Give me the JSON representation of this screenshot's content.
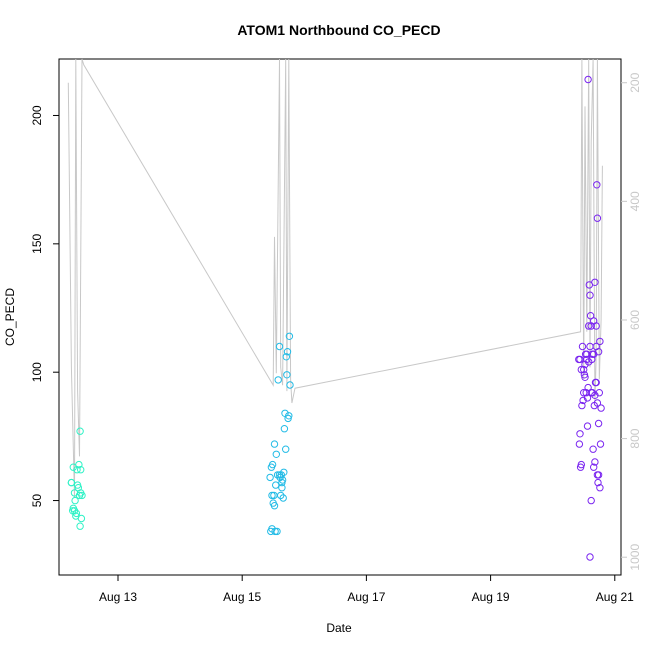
{
  "chart_data": {
    "type": "scatter",
    "title": "ATOM1 Northbound CO_PECD",
    "xlabel": "Date",
    "ylabel": "CO_PECD",
    "x_ticks": [
      "Aug 13",
      "Aug 15",
      "Aug 17",
      "Aug 19",
      "Aug 21"
    ],
    "x_tick_values": [
      13,
      15,
      17,
      19,
      21
    ],
    "xlim": [
      12.05,
      21.1
    ],
    "ylim": [
      21,
      222
    ],
    "y_ticks": [
      50,
      100,
      150,
      200
    ],
    "y2_ticks": [
      200,
      400,
      600,
      800,
      1000
    ],
    "y2lim": [
      1030,
      160
    ],
    "colors": {
      "series_1": "#2ef2c6",
      "series_2": "#22bbe6",
      "series_3": "#7a25f0",
      "y2_line": "#c8c8c8"
    },
    "series": [
      {
        "x": [
          12.25,
          12.28,
          12.3,
          12.32,
          12.34,
          12.35,
          12.36,
          12.38,
          12.39,
          12.4,
          12.42,
          12.25,
          12.28,
          12.3,
          12.37,
          12.41,
          12.31,
          12.33,
          12.39,
          12.4,
          12.27
        ],
        "y": [
          57,
          47,
          46,
          44,
          62,
          56,
          55,
          52,
          77,
          53,
          52,
          57,
          63,
          53,
          64,
          43,
          50,
          45,
          40,
          62,
          46
        ]
      },
      {
        "x": [
          15.45,
          15.47,
          15.48,
          15.5,
          15.52,
          15.53,
          15.55,
          15.58,
          15.6,
          15.62,
          15.63,
          15.65,
          15.67,
          15.68,
          15.7,
          15.72,
          15.73,
          15.75,
          15.76,
          15.77,
          15.46,
          15.49,
          15.51,
          15.54,
          15.57,
          15.61,
          15.64,
          15.66,
          15.69,
          15.71,
          15.74,
          15.48,
          15.52,
          15.56,
          15.6,
          15.64
        ],
        "y": [
          59,
          63,
          52,
          49,
          72,
          38,
          68,
          97,
          110,
          52,
          60,
          58,
          61,
          78,
          70,
          99,
          108,
          83,
          114,
          95,
          38,
          64,
          52,
          56,
          60,
          59,
          55,
          51,
          84,
          106,
          82,
          39,
          48,
          38,
          60,
          57
        ]
      },
      {
        "x": [
          20.42,
          20.44,
          20.46,
          20.47,
          20.5,
          20.52,
          20.54,
          20.55,
          20.57,
          20.58,
          20.6,
          20.62,
          20.63,
          20.64,
          20.66,
          20.67,
          20.68,
          20.7,
          20.72,
          20.73,
          20.75,
          20.77,
          20.78,
          20.43,
          20.45,
          20.48,
          20.51,
          20.53,
          20.56,
          20.59,
          20.61,
          20.65,
          20.69,
          20.71,
          20.74,
          20.76,
          20.44,
          20.49,
          20.55,
          20.6,
          20.66,
          20.7,
          20.74,
          20.57,
          20.62,
          20.68,
          20.72,
          20.46,
          20.52,
          20.58,
          20.64,
          20.7,
          20.76,
          20.5,
          20.56,
          20.62,
          20.68,
          20.74,
          20.6,
          20.66,
          20.72
        ],
        "y": [
          105,
          76,
          64,
          87,
          101,
          103,
          92,
          107,
          214,
          104,
          110,
          118,
          105,
          92,
          107,
          87,
          91,
          118,
          60,
          57,
          92,
          72,
          86,
          72,
          63,
          110,
          99,
          107,
          90,
          134,
          122,
          70,
          96,
          173,
          80,
          112,
          105,
          89,
          105,
          130,
          120,
          96,
          108,
          94,
          92,
          135,
          160,
          101,
          98,
          118,
          107,
          110,
          55,
          92,
          79,
          50,
          65,
          60,
          28,
          63,
          88
        ]
      }
    ],
    "y2_line": {
      "x": [
        12.2,
        12.25,
        12.3,
        12.32,
        12.35,
        12.38,
        12.42,
        12.45,
        15.5,
        15.52,
        15.55,
        15.6,
        15.62,
        15.65,
        15.7,
        15.72,
        15.75,
        15.78,
        15.8,
        15.85,
        20.45,
        20.47,
        20.5,
        20.52,
        20.55,
        20.58,
        20.6,
        20.62,
        20.65,
        20.68,
        20.7,
        20.72,
        20.75,
        20.78,
        20.8
      ],
      "y": [
        200,
        680,
        900,
        160,
        720,
        830,
        160,
        170,
        710,
        460,
        690,
        160,
        680,
        710,
        160,
        720,
        160,
        700,
        740,
        715,
        620,
        160,
        700,
        240,
        620,
        160,
        680,
        300,
        160,
        740,
        660,
        160,
        700,
        600,
        340
      ]
    }
  }
}
